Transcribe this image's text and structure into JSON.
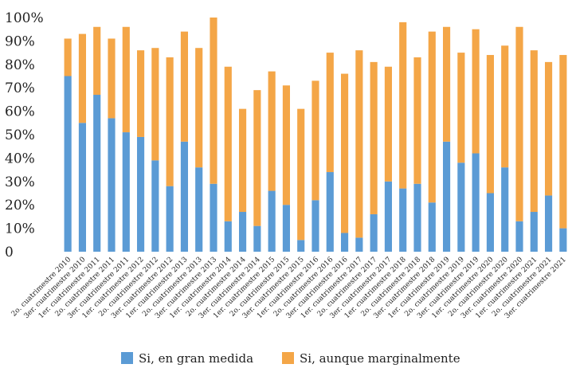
{
  "chart_data": {
    "type": "bar",
    "stacked": true,
    "categories": [
      "2o. cuatrimestre 2010",
      "3er. cuatrimestre 2010",
      "1er. cuatrimestre 2011",
      "2o. cuatrimestre 2011",
      "3er. cuatrimestre 2011",
      "1er. cuatrimestre 2012",
      "2o. cuatrimestre 2012",
      "3er. cuatrimestre 2012",
      "1er. cuatrimestre 2013",
      "2o. cuatrimestre 2013",
      "3er. cuatrimestre 2013",
      "1er. cuatrimestre 2014",
      "2o. cuatrimestre 2014",
      "3er. cuatrimestre 2014",
      "1er. cuatrimestre 2015",
      "2o. cuatrimestre 2015",
      "3er. cuatrimestre 2015",
      "1er. cuatrimestre 2016",
      "2o. cuatrimestre 2016",
      "3er. cuatrimestre 2016",
      "1er. cuatrimestre 2017",
      "2o. cuatrimestre 2017",
      "3er. cuatrimestre 2017",
      "1er. cuatrimestre 2018",
      "2o. cuatrimestre 2018",
      "3er. cuatrimestre 2018",
      "1er. cuatrimestre 2019",
      "2o. cuatrimestre 2019",
      "3er. cuatrimestre 2019",
      "1er. cuatrimestre 2020",
      "2o. cuatrimestre 2020",
      "3er. cuatrimestre 2020",
      "1er. cuatrimestre 2021",
      "2o. cuatrimestre 2021",
      "3er. cuatrimestre 2021"
    ],
    "series": [
      {
        "name": "Si, en gran medida",
        "color": "#5b9bd5",
        "values": [
          75,
          55,
          67,
          57,
          51,
          49,
          39,
          28,
          47,
          36,
          29,
          13,
          17,
          11,
          26,
          20,
          5,
          22,
          34,
          8,
          6,
          16,
          30,
          27,
          29,
          21,
          47,
          38,
          42,
          25,
          36,
          13,
          17,
          24,
          10
        ]
      },
      {
        "name": "Si, aunque marginalmente",
        "color": "#f4a647",
        "values": [
          16,
          38,
          29,
          34,
          45,
          37,
          48,
          55,
          47,
          51,
          71,
          66,
          44,
          58,
          51,
          51,
          56,
          51,
          51,
          68,
          80,
          65,
          49,
          71,
          54,
          73,
          49,
          47,
          53,
          59,
          52,
          83,
          69,
          57,
          74
        ]
      }
    ],
    "yticks": [
      "0",
      "10%",
      "20%",
      "30%",
      "40%",
      "50%",
      "60%",
      "70%",
      "80%",
      "90%",
      "100%"
    ],
    "ylim": [
      0,
      100
    ],
    "grid": false,
    "legend_position": "bottom",
    "title": "",
    "xlabel": "",
    "ylabel": ""
  }
}
